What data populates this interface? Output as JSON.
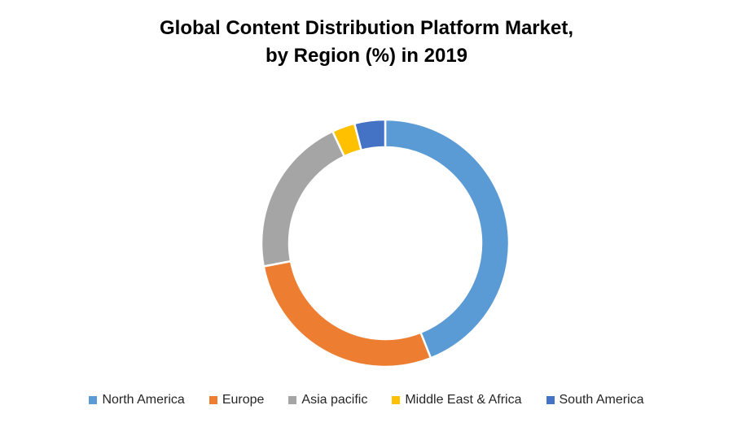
{
  "chart_data": {
    "type": "pie",
    "variant": "donut",
    "title_lines": [
      "Global Content Distribution Platform Market,",
      "by Region (%) in 2019"
    ],
    "categories": [
      "North America",
      "Europe",
      "Asia pacific",
      "Middle East & Africa",
      "South America"
    ],
    "values": [
      44,
      28,
      21,
      3,
      4
    ],
    "colors": [
      "#5b9bd5",
      "#ed7d31",
      "#a5a5a5",
      "#ffc000",
      "#4472c4"
    ],
    "legend_position": "bottom"
  }
}
